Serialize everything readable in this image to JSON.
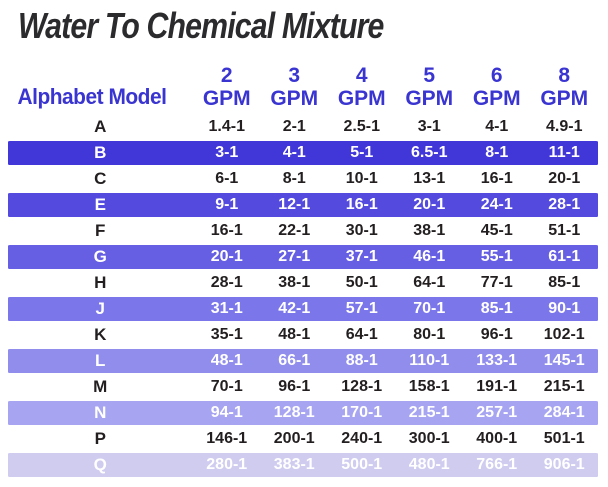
{
  "title": "Water To Chemical Mixture",
  "header": {
    "model_label": "Alphabet Model",
    "gpm_unit": "GPM",
    "gpm_values": [
      "2",
      "3",
      "4",
      "5",
      "6",
      "8"
    ]
  },
  "colors": {
    "title_text": "#2b2b2e",
    "header_text": "#3a35d1",
    "row_text_dark": "#231f20",
    "row_text_light": "#ffffff",
    "background": "#ffffff"
  },
  "chart_data": {
    "type": "table",
    "title": "Water To Chemical Mixture",
    "columns": [
      "Alphabet Model",
      "2 GPM",
      "3 GPM",
      "4 GPM",
      "5 GPM",
      "6 GPM",
      "8 GPM"
    ],
    "rows": [
      {
        "model": "A",
        "ratios": [
          "1.4-1",
          "2-1",
          "2.5-1",
          "3-1",
          "4-1",
          "4.9-1"
        ],
        "highlighted": false,
        "band_color": null
      },
      {
        "model": "B",
        "ratios": [
          "3-1",
          "4-1",
          "5-1",
          "6.5-1",
          "8-1",
          "11-1"
        ],
        "highlighted": true,
        "band_color": "#4136d7"
      },
      {
        "model": "C",
        "ratios": [
          "6-1",
          "8-1",
          "10-1",
          "13-1",
          "16-1",
          "20-1"
        ],
        "highlighted": false,
        "band_color": null
      },
      {
        "model": "E",
        "ratios": [
          "9-1",
          "12-1",
          "16-1",
          "20-1",
          "24-1",
          "28-1"
        ],
        "highlighted": true,
        "band_color": "#544ade"
      },
      {
        "model": "F",
        "ratios": [
          "16-1",
          "22-1",
          "30-1",
          "38-1",
          "45-1",
          "51-1"
        ],
        "highlighted": false,
        "band_color": null
      },
      {
        "model": "G",
        "ratios": [
          "20-1",
          "27-1",
          "37-1",
          "46-1",
          "55-1",
          "61-1"
        ],
        "highlighted": true,
        "band_color": "#665ee3"
      },
      {
        "model": "H",
        "ratios": [
          "28-1",
          "38-1",
          "50-1",
          "64-1",
          "77-1",
          "85-1"
        ],
        "highlighted": false,
        "band_color": null
      },
      {
        "model": "J",
        "ratios": [
          "31-1",
          "42-1",
          "57-1",
          "70-1",
          "85-1",
          "90-1"
        ],
        "highlighted": true,
        "band_color": "#7b76ea"
      },
      {
        "model": "K",
        "ratios": [
          "35-1",
          "48-1",
          "64-1",
          "80-1",
          "96-1",
          "102-1"
        ],
        "highlighted": false,
        "band_color": null
      },
      {
        "model": "L",
        "ratios": [
          "48-1",
          "66-1",
          "88-1",
          "110-1",
          "133-1",
          "145-1"
        ],
        "highlighted": true,
        "band_color": "#908ded"
      },
      {
        "model": "M",
        "ratios": [
          "70-1",
          "96-1",
          "128-1",
          "158-1",
          "191-1",
          "215-1"
        ],
        "highlighted": false,
        "band_color": null
      },
      {
        "model": "N",
        "ratios": [
          "94-1",
          "128-1",
          "170-1",
          "215-1",
          "257-1",
          "284-1"
        ],
        "highlighted": true,
        "band_color": "#a7a5f1"
      },
      {
        "model": "P",
        "ratios": [
          "146-1",
          "200-1",
          "240-1",
          "300-1",
          "400-1",
          "501-1"
        ],
        "highlighted": false,
        "band_color": null
      },
      {
        "model": "Q",
        "ratios": [
          "280-1",
          "383-1",
          "500-1",
          "480-1",
          "766-1",
          "906-1"
        ],
        "highlighted": true,
        "band_color": "#cfccf0"
      }
    ]
  }
}
